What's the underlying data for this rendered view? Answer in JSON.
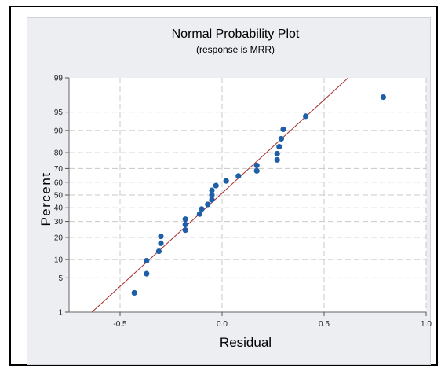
{
  "chart_data": {
    "type": "scatter",
    "title": "Normal Probability Plot",
    "subtitle": "(response is MRR)",
    "xlabel": "Residual",
    "ylabel": "Percent",
    "xlim": [
      -0.75,
      1.0
    ],
    "ylim": [
      1,
      99
    ],
    "y_scale": "normal-probability",
    "x_ticks": [
      "-0.5",
      "0.0",
      "0.5",
      "1.0"
    ],
    "y_ticks": [
      "1",
      "5",
      "10",
      "20",
      "30",
      "40",
      "50",
      "60",
      "70",
      "80",
      "90",
      "95",
      "99"
    ],
    "grid": true,
    "points": [
      {
        "x": -0.43,
        "y": 2.6
      },
      {
        "x": -0.37,
        "y": 5.9
      },
      {
        "x": -0.37,
        "y": 9.6
      },
      {
        "x": -0.31,
        "y": 13.2
      },
      {
        "x": -0.3,
        "y": 16.9
      },
      {
        "x": -0.3,
        "y": 20.6
      },
      {
        "x": -0.18,
        "y": 24.3
      },
      {
        "x": -0.18,
        "y": 27.9
      },
      {
        "x": -0.18,
        "y": 31.6
      },
      {
        "x": -0.11,
        "y": 35.3
      },
      {
        "x": -0.1,
        "y": 39.0
      },
      {
        "x": -0.07,
        "y": 42.6
      },
      {
        "x": -0.05,
        "y": 46.3
      },
      {
        "x": -0.05,
        "y": 50.0
      },
      {
        "x": -0.05,
        "y": 53.7
      },
      {
        "x": -0.03,
        "y": 57.4
      },
      {
        "x": 0.02,
        "y": 61.0
      },
      {
        "x": 0.08,
        "y": 64.7
      },
      {
        "x": 0.17,
        "y": 68.4
      },
      {
        "x": 0.17,
        "y": 72.1
      },
      {
        "x": 0.27,
        "y": 75.7
      },
      {
        "x": 0.27,
        "y": 79.4
      },
      {
        "x": 0.28,
        "y": 83.1
      },
      {
        "x": 0.29,
        "y": 86.8
      },
      {
        "x": 0.3,
        "y": 90.4
      },
      {
        "x": 0.41,
        "y": 94.1
      },
      {
        "x": 0.79,
        "y": 97.4
      }
    ],
    "fit_line": {
      "x_at_50pct": -0.01,
      "x_at_84pct": 0.26
    },
    "colors": {
      "points": "#1f5fa8",
      "fit_line": "#a52a2a",
      "plot_background": "#ffffff",
      "panel_background": "#eceef2",
      "grid": "#c8c8c8"
    }
  }
}
